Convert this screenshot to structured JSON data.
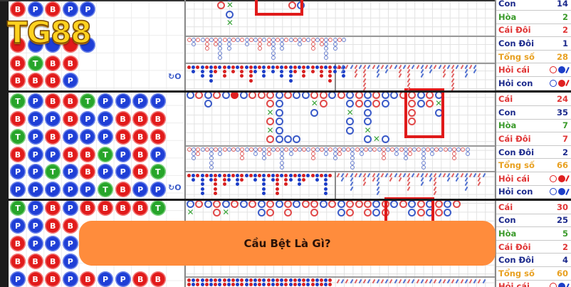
{
  "logo": {
    "text": "TG88"
  },
  "banner": {
    "title": "Cầu Bệt Là Gì?"
  },
  "colors": {
    "banker": "#e11b1b",
    "player": "#1f3fd6",
    "tie": "#27a52a",
    "banner": "#ff8c3c",
    "highlight_box": "#e01a1a",
    "total": "#e8a020"
  },
  "sections": [
    {
      "bead_plate": [
        "BPBPP",
        "",
        "BPPBP",
        "BTBB",
        "BBBP"
      ],
      "big_road": [
        ".R",
        "BXBX",
        "",
        "",
        "",
        "",
        "",
        "",
        ".R",
        ".B"
      ],
      "stats": [
        {
          "label": "Con",
          "value": "14",
          "kind": "player"
        },
        {
          "label": "Hòa",
          "value": "2",
          "kind": "tie"
        },
        {
          "label": "Cái Đôi",
          "value": "2",
          "kind": "banker"
        },
        {
          "label": "Con Đôi",
          "value": "1",
          "kind": "player"
        },
        {
          "label": "Tổng số",
          "value": "28",
          "kind": "total"
        },
        {
          "label": "Hỏi cái",
          "kind": "banker",
          "icons": [
            "R",
            "B",
            "B"
          ]
        },
        {
          "label": "Hỏi con",
          "kind": "player",
          "icons": [
            "B",
            "R",
            "R"
          ]
        }
      ]
    },
    {
      "bead_plate": [
        "TPBBTPPPP",
        "BPPBPPBBB",
        "TPBPPPBBB",
        "BPPBBTPBP",
        "PPTPBPPBT",
        "PPPPPTBPP"
      ],
      "big_road": [
        "B",
        "R",
        "BB",
        "R",
        "B",
        "F",
        "B",
        "R",
        "R",
        "RRXRXR",
        "BBBBBB",
        "R....B",
        "B....B",
        "B",
        "RXB",
        "RR",
        "B",
        "R",
        "BBXBB",
        "RR",
        "BBBBXB",
        "RR...X",
        "BB...B",
        "B",
        "R",
        "RRRR",
        "BB",
        "RR",
        "BXB"
      ],
      "stats": [
        {
          "label": "Cái",
          "value": "24",
          "kind": "banker"
        },
        {
          "label": "Con",
          "value": "35",
          "kind": "player"
        },
        {
          "label": "Hòa",
          "value": "7",
          "kind": "tie"
        },
        {
          "label": "Cái Đôi",
          "value": "7",
          "kind": "banker"
        },
        {
          "label": "Con Đôi",
          "value": "2",
          "kind": "player"
        },
        {
          "label": "Tổng số",
          "value": "66",
          "kind": "total"
        },
        {
          "label": "Hỏi cái",
          "kind": "banker",
          "icons": [
            "R",
            "R",
            "R"
          ]
        },
        {
          "label": "Hỏi con",
          "kind": "player",
          "icons": [
            "B",
            "B",
            "B"
          ]
        }
      ]
    },
    {
      "bead_plate": [
        "TPBPBBBBT",
        "PPBB",
        "BPPP",
        "BBBP",
        "PBBPBPPBB"
      ],
      "big_road": [
        "BX",
        "R",
        "B",
        "RR",
        "BX",
        "R",
        "B",
        "R",
        "BB",
        "RR",
        "B",
        "RR",
        "B",
        "R",
        "RR",
        "B",
        "R",
        "BB",
        "RR",
        "R",
        "RR",
        "BB",
        "RR",
        "B",
        "R",
        "BB",
        "RR",
        "BB",
        "RR",
        "BB",
        "R"
      ],
      "stats": [
        {
          "label": "Cái",
          "value": "30",
          "kind": "banker"
        },
        {
          "label": "Con",
          "value": "25",
          "kind": "player"
        },
        {
          "label": "Hòa",
          "value": "5",
          "kind": "tie"
        },
        {
          "label": "Cái Đôi",
          "value": "2",
          "kind": "banker"
        },
        {
          "label": "Con Đôi",
          "value": "4",
          "kind": "player"
        },
        {
          "label": "Tổng số",
          "value": "60",
          "kind": "total"
        },
        {
          "label": "Hỏi cái",
          "kind": "banker",
          "icons": [
            "R",
            "B",
            "B"
          ]
        }
      ]
    }
  ]
}
